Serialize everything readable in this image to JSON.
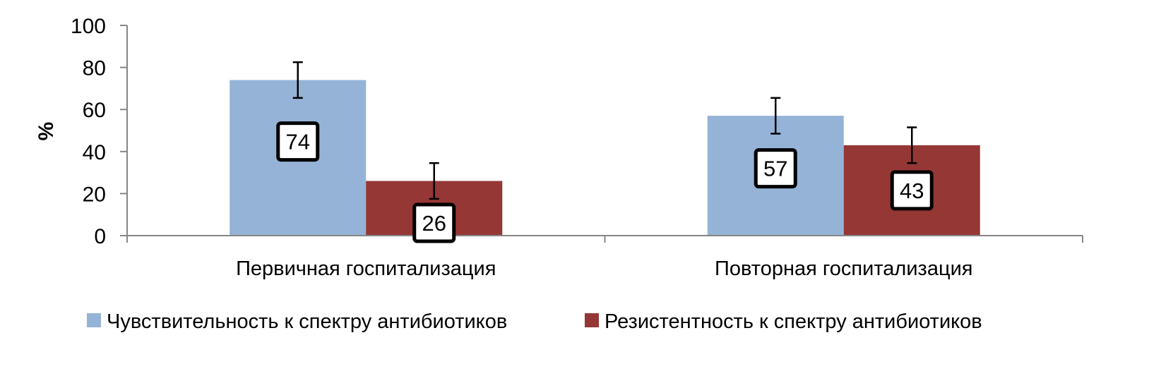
{
  "chart_data": {
    "type": "bar",
    "title": "",
    "xlabel": "",
    "ylabel": "%",
    "ylim": [
      0,
      100
    ],
    "yticks": [
      0,
      20,
      40,
      60,
      80,
      100
    ],
    "categories": [
      "Первичная госпитализация",
      "Повторная госпитализация"
    ],
    "series": [
      {
        "name": "Чувствительность к спектру антибиотиков",
        "color": "#95B3D7",
        "values": [
          74,
          57
        ],
        "error": [
          8.5,
          8.5
        ],
        "data_labels": [
          "74",
          "57"
        ]
      },
      {
        "name": "Резистентность к спектру антибиотиков",
        "color": "#953735",
        "values": [
          26,
          43
        ],
        "error": [
          8.5,
          8.5
        ],
        "data_labels": [
          "26",
          "43"
        ]
      }
    ],
    "grid": false,
    "legend_position": "bottom"
  }
}
